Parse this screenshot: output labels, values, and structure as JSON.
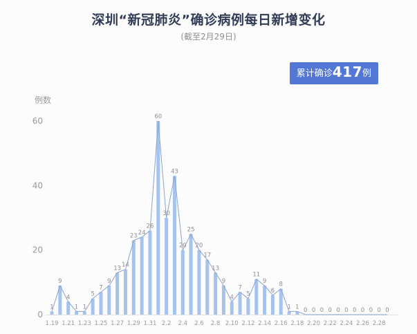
{
  "header": {
    "title": "深圳“新冠肺炎”确诊病例每日新增变化",
    "subtitle": "(截至2月29日)"
  },
  "badge": {
    "prefix": "累计确诊",
    "value": "417",
    "suffix": "例"
  },
  "chart_data": {
    "type": "bar",
    "title": "深圳“新冠肺炎”确诊病例每日新增变化",
    "subtitle": "(截至2月29日)",
    "ylabel": "例数",
    "xlabel": "",
    "ylim": [
      0,
      60
    ],
    "yticks": [
      0,
      20,
      40,
      60
    ],
    "grid": false,
    "legend": "none",
    "x_tick_every": 2,
    "categories": [
      "1.19",
      "1.20",
      "1.21",
      "1.22",
      "1.23",
      "1.24",
      "1.25",
      "1.26",
      "1.27",
      "1.28",
      "1.29",
      "1.30",
      "1.31",
      "2.1",
      "2.2",
      "2.3",
      "2.4",
      "2.5",
      "2.6",
      "2.7",
      "2.8",
      "2.9",
      "2.10",
      "2.11",
      "2.12",
      "2.13",
      "2.14",
      "2.15",
      "2.16",
      "2.17",
      "2.18",
      "2.19",
      "2.20",
      "2.21",
      "2.22",
      "2.23",
      "2.24",
      "2.25",
      "2.26",
      "2.27",
      "2.28",
      "2.29"
    ],
    "values": [
      1,
      9,
      4,
      1,
      1,
      5,
      7,
      9,
      13,
      14,
      23,
      24,
      26,
      60,
      30,
      43,
      20,
      25,
      20,
      17,
      13,
      9,
      4,
      7,
      5,
      11,
      9,
      6,
      8,
      1,
      1,
      0,
      0,
      0,
      0,
      0,
      0,
      0,
      0,
      0,
      0,
      0
    ],
    "colors": {
      "bar": "#a6c3ee",
      "line": "#8ba3cc",
      "badge_bg": "#5277d4",
      "title_text": "#323c56",
      "axis": "#e3e3e3",
      "tick_text": "#9a9a9a"
    }
  }
}
